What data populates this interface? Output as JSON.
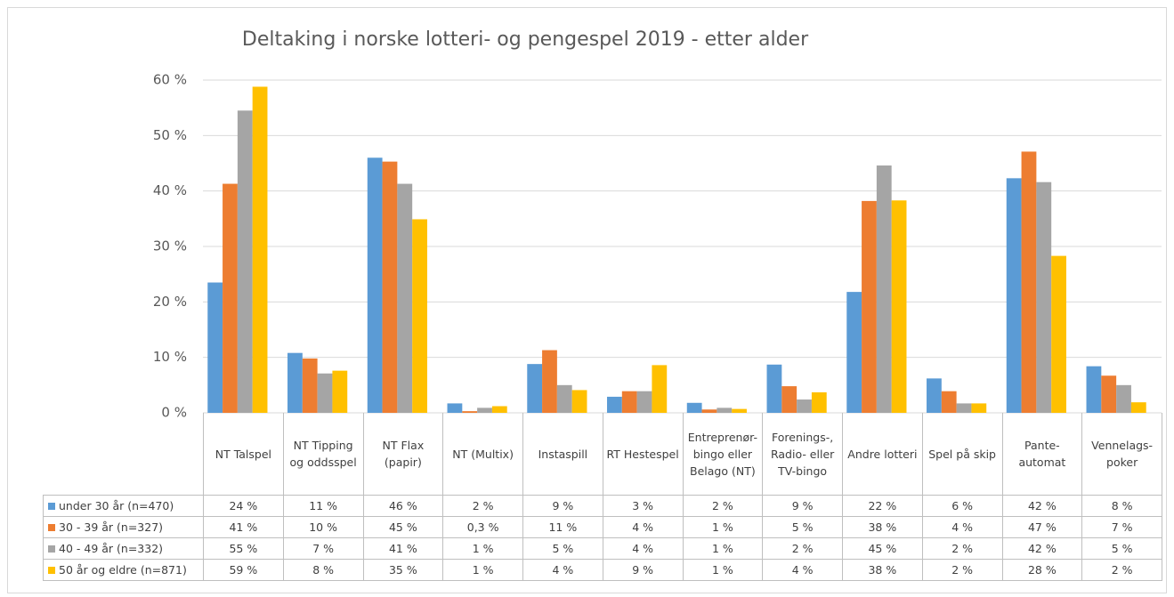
{
  "chart_data": {
    "type": "bar",
    "title": "Deltaking i norske lotteri- og pengespel 2019 - etter alder",
    "categories": [
      "NT Talspel",
      "NT Tipping og oddsspel",
      "NT Flax (papir)",
      "NT (Multix)",
      "Instaspill",
      "RT Hestespel",
      "Entreprenør- bingo eller Belago (NT)",
      "Forenings-, Radio- eller TV-bingo",
      "Andre lotteri",
      "Spel på skip",
      "Pante- automat",
      "Vennelags- poker"
    ],
    "series": [
      {
        "name": "under 30 år (n=470)",
        "color": "#5b9bd5",
        "values": [
          23.5,
          10.8,
          46,
          1.7,
          8.8,
          2.9,
          1.8,
          8.7,
          21.8,
          6.2,
          42.3,
          8.4
        ],
        "value_labels": [
          "24 %",
          "11 %",
          "46 %",
          "2 %",
          "9 %",
          "3 %",
          "2 %",
          "9 %",
          "22 %",
          "6 %",
          "42 %",
          "8 %"
        ]
      },
      {
        "name": "30 - 39 år (n=327)",
        "color": "#ed7d31",
        "values": [
          41.3,
          9.8,
          45.3,
          0.3,
          11.3,
          3.9,
          0.6,
          4.8,
          38.2,
          3.9,
          47.1,
          6.7
        ],
        "value_labels": [
          "41 %",
          "10 %",
          "45 %",
          "0,3 %",
          "11 %",
          "4 %",
          "1 %",
          "5 %",
          "38 %",
          "4 %",
          "47 %",
          "7 %"
        ]
      },
      {
        "name": "40 - 49 år (n=332)",
        "color": "#a5a5a5",
        "values": [
          54.5,
          7.1,
          41.3,
          0.9,
          5.0,
          3.9,
          0.9,
          2.4,
          44.6,
          1.7,
          41.6,
          5.0
        ],
        "value_labels": [
          "55 %",
          "7 %",
          "41 %",
          "1 %",
          "5 %",
          "4 %",
          "1 %",
          "2 %",
          "45 %",
          "2 %",
          "42 %",
          "5 %"
        ]
      },
      {
        "name": "50 år og eldre (n=871)",
        "color": "#ffc000",
        "values": [
          58.8,
          7.6,
          34.9,
          1.2,
          4.1,
          8.6,
          0.7,
          3.7,
          38.3,
          1.7,
          28.3,
          1.9
        ],
        "value_labels": [
          "59 %",
          "8 %",
          "35 %",
          "1 %",
          "4 %",
          "9 %",
          "1 %",
          "4 %",
          "38 %",
          "2 %",
          "28 %",
          "2 %"
        ]
      }
    ],
    "ylim": [
      0,
      60
    ],
    "yticks": [
      {
        "value": 0,
        "label": "0 %"
      },
      {
        "value": 10,
        "label": "10 %"
      },
      {
        "value": 20,
        "label": "20 %"
      },
      {
        "value": 30,
        "label": "30 %"
      },
      {
        "value": 40,
        "label": "40 %"
      },
      {
        "value": 50,
        "label": "50 %"
      },
      {
        "value": 60,
        "label": "60 %"
      }
    ],
    "grid": true
  }
}
